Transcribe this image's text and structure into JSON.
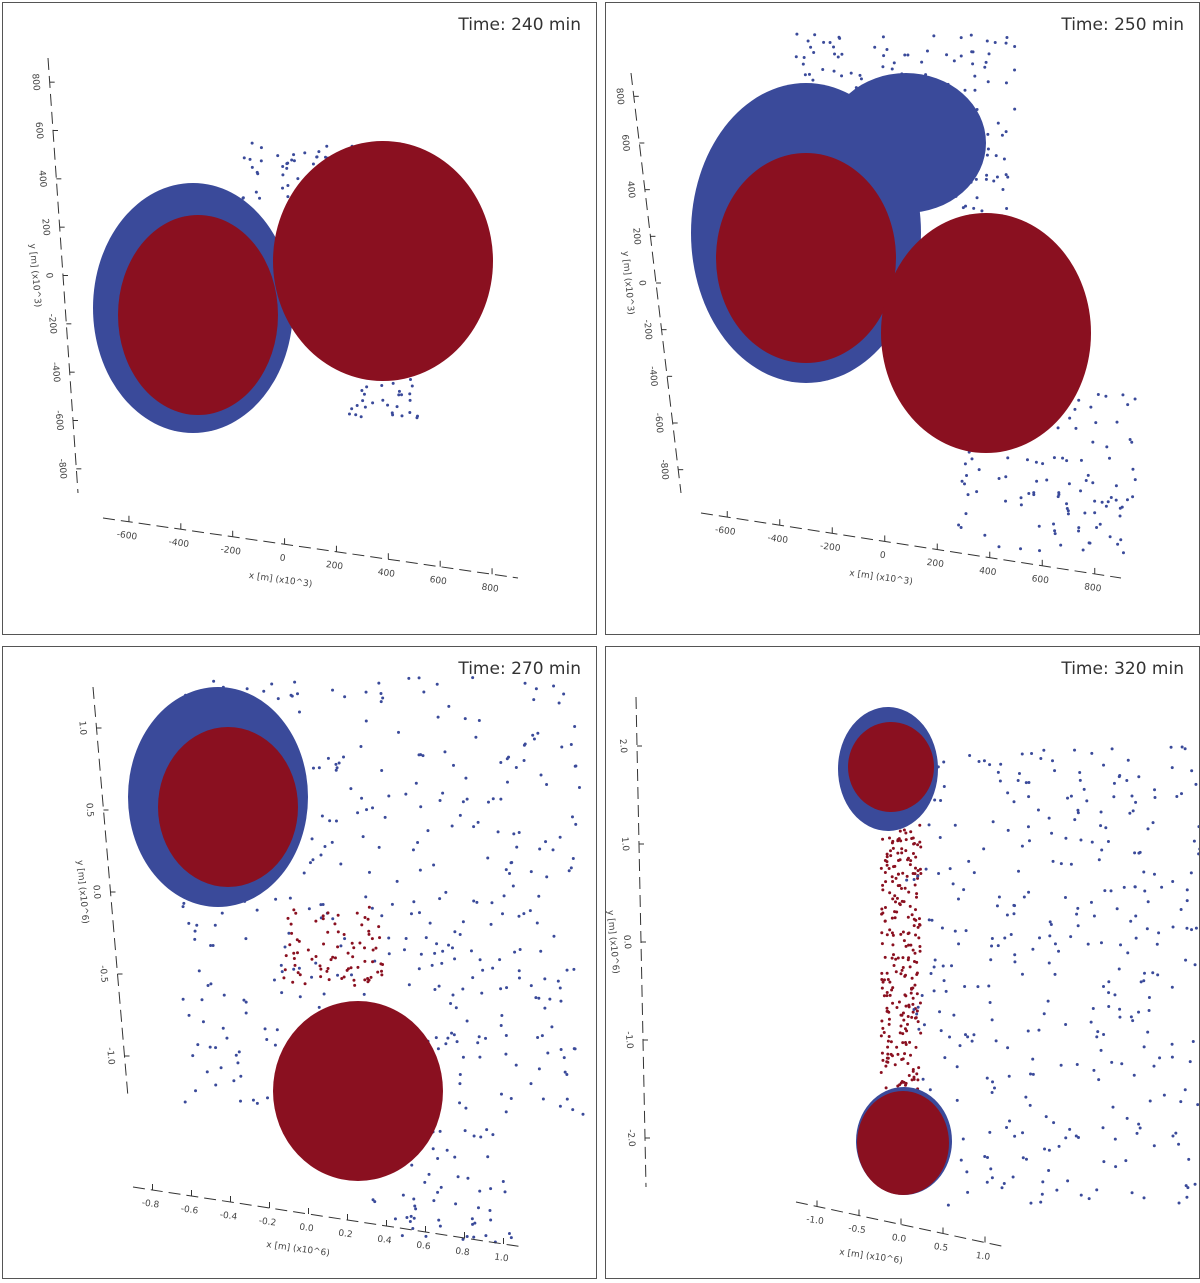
{
  "panels": [
    {
      "time": "Time: 240 min",
      "x_label": "x [m] (x10^3)",
      "y_label": "y [m] (x10^3)",
      "x_ticks": [
        "-600",
        "-400",
        "-200",
        "0",
        "200",
        "400",
        "600",
        "800"
      ],
      "y_ticks": [
        "800",
        "600",
        "400",
        "200",
        "0",
        "-200",
        "-400",
        "-600",
        "-800"
      ]
    },
    {
      "time": "Time: 250 min",
      "x_label": "x [m] (x10^3)",
      "y_label": "y [m] (x10^3)",
      "x_ticks": [
        "-600",
        "-400",
        "-200",
        "0",
        "200",
        "400",
        "600",
        "800"
      ],
      "y_ticks": [
        "800",
        "600",
        "400",
        "200",
        "0",
        "-200",
        "-400",
        "-600",
        "-800"
      ]
    },
    {
      "time": "Time: 270 min",
      "x_label": "x [m] (x10^6)",
      "y_label": "y [m] (x10^6)",
      "x_ticks": [
        "-0.8",
        "-0.6",
        "-0.4",
        "-0.2",
        "0.0",
        "0.2",
        "0.4",
        "0.6",
        "0.8",
        "1.0"
      ],
      "y_ticks": [
        "1.0",
        "0.5",
        "0.0",
        "-0.5",
        "-1.0"
      ]
    },
    {
      "time": "Time: 320 min",
      "x_label": "x [m] (x10^6)",
      "y_label": "y [m] (x10^6)",
      "x_ticks": [
        "-1.0",
        "-0.5",
        "0.0",
        "0.5",
        "1.0"
      ],
      "y_ticks": [
        "2.0",
        "1.0",
        "0.0",
        "-1.0",
        "-2.0"
      ]
    }
  ]
}
